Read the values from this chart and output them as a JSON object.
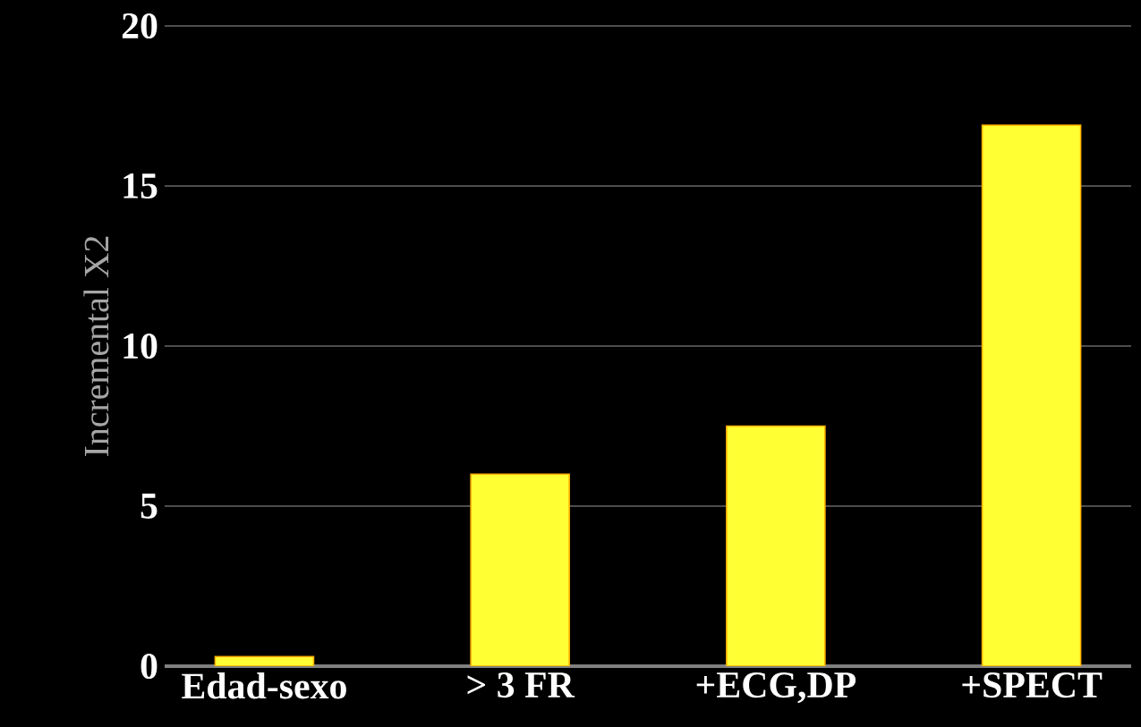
{
  "chart_data": {
    "type": "bar",
    "ylabel": "Incremental X2",
    "categories": [
      "Edad-sexo",
      "> 3 FR",
      "+ECG,DP",
      "+SPECT"
    ],
    "values": [
      0.3,
      6,
      7.5,
      16.9
    ],
    "color": "#ffff33",
    "ylim": [
      0,
      20
    ],
    "yticks": [
      0,
      5,
      10,
      15,
      20
    ],
    "grid": "y"
  }
}
